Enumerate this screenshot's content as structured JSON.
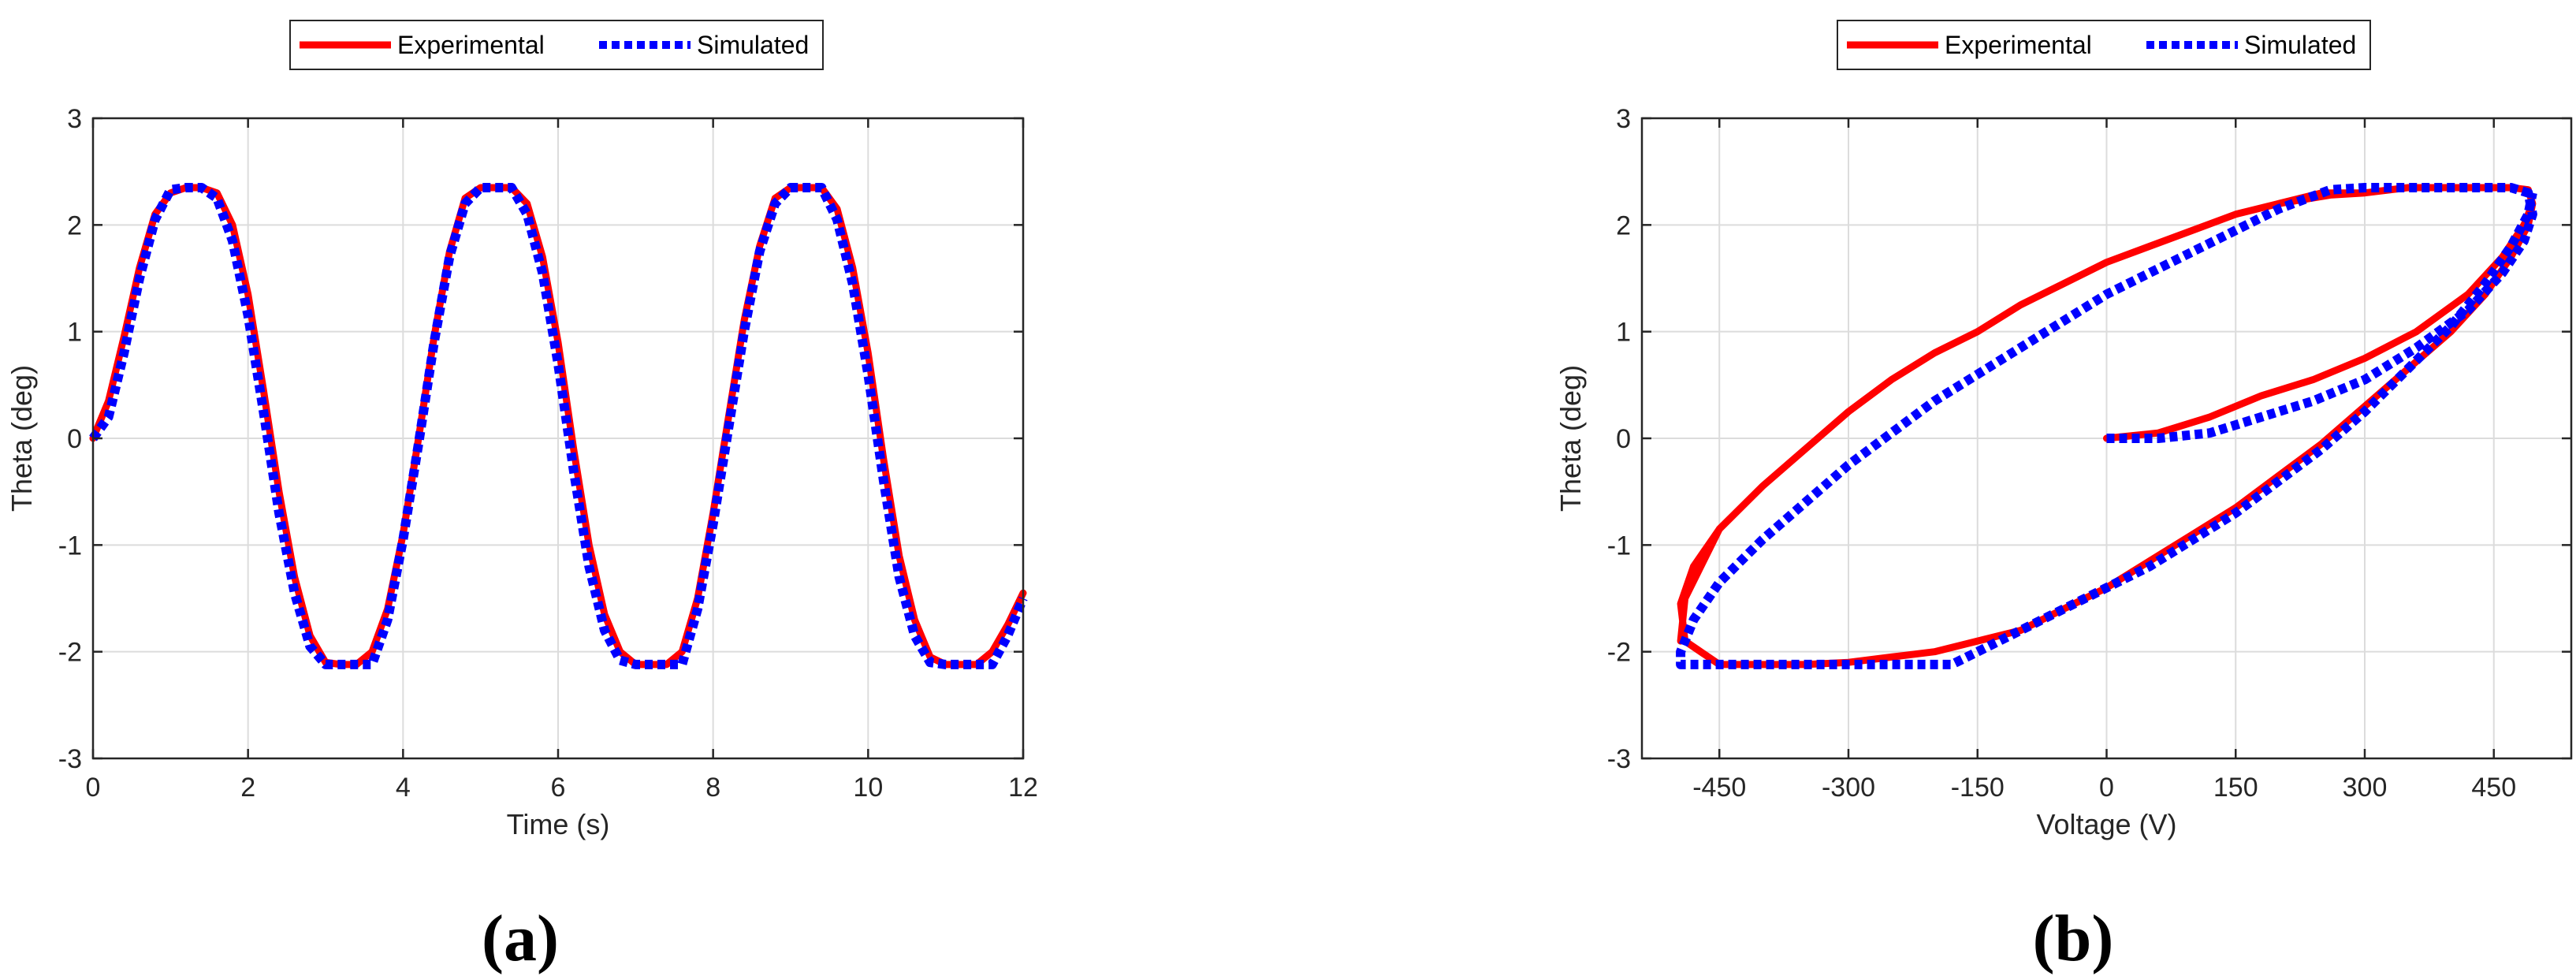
{
  "chart_data": [
    {
      "type": "line",
      "panel_label": "(a)",
      "xlabel": "Time (s)",
      "ylabel": "Theta (deg)",
      "xlim": [
        0,
        12
      ],
      "ylim": [
        -3,
        3
      ],
      "xticks": [
        0,
        2,
        4,
        6,
        8,
        10,
        12
      ],
      "yticks": [
        -3,
        -2,
        -1,
        0,
        1,
        2,
        3
      ],
      "grid": true,
      "legend_position": "top-center, outside above plot, horizontal",
      "series": [
        {
          "name": "Experimental",
          "style": "solid",
          "color": "#ff0000",
          "x": [
            0,
            0.2,
            0.4,
            0.6,
            0.8,
            1.0,
            1.2,
            1.4,
            1.6,
            1.8,
            2.0,
            2.2,
            2.4,
            2.6,
            2.8,
            3.0,
            3.2,
            3.4,
            3.6,
            3.8,
            4.0,
            4.2,
            4.4,
            4.6,
            4.8,
            5.0,
            5.2,
            5.4,
            5.6,
            5.8,
            6.0,
            6.2,
            6.4,
            6.6,
            6.8,
            7.0,
            7.2,
            7.4,
            7.6,
            7.8,
            8.0,
            8.2,
            8.4,
            8.6,
            8.8,
            9.0,
            9.2,
            9.4,
            9.6,
            9.8,
            10.0,
            10.2,
            10.4,
            10.6,
            10.8,
            11.0,
            11.2,
            11.4,
            11.6,
            11.8,
            12.0
          ],
          "y": [
            0,
            0.35,
            0.95,
            1.6,
            2.1,
            2.3,
            2.35,
            2.35,
            2.3,
            2.0,
            1.35,
            0.45,
            -0.5,
            -1.3,
            -1.85,
            -2.1,
            -2.12,
            -2.12,
            -2.0,
            -1.6,
            -0.9,
            0.0,
            0.95,
            1.75,
            2.25,
            2.35,
            2.35,
            2.35,
            2.2,
            1.7,
            0.9,
            -0.1,
            -1.0,
            -1.65,
            -2.0,
            -2.12,
            -2.12,
            -2.12,
            -2.0,
            -1.5,
            -0.7,
            0.2,
            1.1,
            1.8,
            2.25,
            2.35,
            2.35,
            2.35,
            2.15,
            1.6,
            0.8,
            -0.2,
            -1.1,
            -1.7,
            -2.05,
            -2.12,
            -2.12,
            -2.12,
            -2.0,
            -1.75,
            -1.45
          ]
        },
        {
          "name": "Simulated",
          "style": "dotted",
          "color": "#0000ff",
          "x": [
            0,
            0.2,
            0.4,
            0.6,
            0.8,
            1.0,
            1.2,
            1.4,
            1.6,
            1.8,
            2.0,
            2.2,
            2.4,
            2.6,
            2.8,
            3.0,
            3.2,
            3.4,
            3.6,
            3.8,
            4.0,
            4.2,
            4.4,
            4.6,
            4.8,
            5.0,
            5.2,
            5.4,
            5.6,
            5.8,
            6.0,
            6.2,
            6.4,
            6.6,
            6.8,
            7.0,
            7.2,
            7.4,
            7.6,
            7.8,
            8.0,
            8.2,
            8.4,
            8.6,
            8.8,
            9.0,
            9.2,
            9.4,
            9.6,
            9.8,
            10.0,
            10.2,
            10.4,
            10.6,
            10.8,
            11.0,
            11.2,
            11.4,
            11.6,
            11.8,
            12.0
          ],
          "y": [
            0,
            0.2,
            0.8,
            1.5,
            2.05,
            2.33,
            2.35,
            2.35,
            2.25,
            1.85,
            1.15,
            0.25,
            -0.7,
            -1.45,
            -1.95,
            -2.12,
            -2.12,
            -2.12,
            -2.12,
            -1.7,
            -0.95,
            -0.05,
            0.9,
            1.7,
            2.2,
            2.35,
            2.35,
            2.35,
            2.1,
            1.55,
            0.7,
            -0.3,
            -1.2,
            -1.8,
            -2.08,
            -2.12,
            -2.12,
            -2.12,
            -2.12,
            -1.6,
            -0.8,
            0.1,
            1.0,
            1.75,
            2.2,
            2.35,
            2.35,
            2.35,
            2.05,
            1.45,
            0.6,
            -0.4,
            -1.3,
            -1.85,
            -2.1,
            -2.12,
            -2.12,
            -2.12,
            -2.12,
            -1.85,
            -1.5
          ]
        }
      ]
    },
    {
      "type": "line",
      "panel_label": "(b)",
      "xlabel": "Voltage (V)",
      "ylabel": "Theta (deg)",
      "xlim": [
        -540,
        540
      ],
      "ylim": [
        -3,
        3
      ],
      "xticks": [
        -450,
        -300,
        -150,
        0,
        150,
        300,
        450
      ],
      "yticks": [
        -3,
        -2,
        -1,
        0,
        1,
        2,
        3
      ],
      "grid": true,
      "legend_position": "top-center, outside above plot, horizontal",
      "series": [
        {
          "name": "Experimental",
          "style": "solid",
          "color": "#ff0000",
          "x": [
            0,
            60,
            120,
            180,
            240,
            300,
            360,
            420,
            460,
            485,
            495,
            490,
            470,
            440,
            400,
            350,
            300,
            250,
            200,
            150,
            100,
            50,
            0,
            -50,
            -100,
            -150,
            -200,
            -250,
            -300,
            -350,
            -400,
            -450,
            -480,
            -495,
            -490,
            -450,
            -400,
            -350,
            -300,
            -250,
            -200,
            -150,
            -100,
            -50,
            0,
            50,
            100,
            150,
            200,
            250,
            300,
            350,
            400,
            440,
            470,
            490,
            495,
            490,
            470,
            420,
            350,
            300,
            260,
            200,
            150,
            100,
            50,
            0,
            -50,
            -100,
            -150,
            -200,
            -250,
            -300,
            -350,
            -400,
            -450,
            -490,
            -495
          ],
          "y": [
            0,
            0.05,
            0.2,
            0.4,
            0.55,
            0.75,
            1.0,
            1.35,
            1.7,
            2.0,
            2.2,
            2.33,
            2.35,
            2.35,
            2.35,
            2.35,
            2.3,
            2.3,
            2.2,
            2.1,
            1.95,
            1.8,
            1.65,
            1.45,
            1.25,
            1.0,
            0.8,
            0.55,
            0.25,
            -0.1,
            -0.45,
            -0.85,
            -1.2,
            -1.55,
            -1.9,
            -2.12,
            -2.12,
            -2.12,
            -2.1,
            -2.05,
            -2.0,
            -1.9,
            -1.8,
            -1.6,
            -1.4,
            -1.15,
            -0.9,
            -0.65,
            -0.35,
            -0.05,
            0.3,
            0.65,
            1.0,
            1.35,
            1.7,
            2.0,
            2.2,
            2.33,
            2.35,
            2.35,
            2.35,
            2.3,
            2.28,
            2.2,
            2.1,
            1.95,
            1.8,
            1.65,
            1.45,
            1.25,
            1.0,
            0.8,
            0.55,
            0.25,
            -0.1,
            -0.45,
            -0.85,
            -1.5,
            -1.9
          ]
        },
        {
          "name": "Simulated",
          "style": "dotted",
          "color": "#0000ff",
          "x": [
            0,
            60,
            120,
            180,
            240,
            300,
            360,
            420,
            460,
            485,
            495,
            490,
            470,
            440,
            400,
            350,
            300,
            260,
            200,
            150,
            100,
            50,
            0,
            -50,
            -100,
            -150,
            -200,
            -250,
            -300,
            -350,
            -400,
            -450,
            -480,
            -495,
            -495,
            -450,
            -400,
            -350,
            -300,
            -250,
            -200,
            -180,
            -150,
            -100,
            -50,
            0,
            50,
            100,
            150,
            200,
            250,
            300,
            350,
            400,
            440,
            470,
            490,
            495
          ],
          "y": [
            0,
            0.0,
            0.05,
            0.2,
            0.35,
            0.55,
            0.85,
            1.2,
            1.55,
            1.85,
            2.1,
            2.3,
            2.35,
            2.35,
            2.35,
            2.35,
            2.35,
            2.33,
            2.15,
            1.95,
            1.75,
            1.55,
            1.35,
            1.1,
            0.85,
            0.6,
            0.35,
            0.05,
            -0.25,
            -0.6,
            -0.95,
            -1.35,
            -1.7,
            -2.0,
            -2.12,
            -2.12,
            -2.12,
            -2.12,
            -2.12,
            -2.12,
            -2.12,
            -2.12,
            -2.0,
            -1.8,
            -1.6,
            -1.4,
            -1.2,
            -0.95,
            -0.7,
            -0.4,
            -0.1,
            0.25,
            0.65,
            1.05,
            1.45,
            1.8,
            2.1,
            2.3
          ]
        }
      ]
    }
  ]
}
